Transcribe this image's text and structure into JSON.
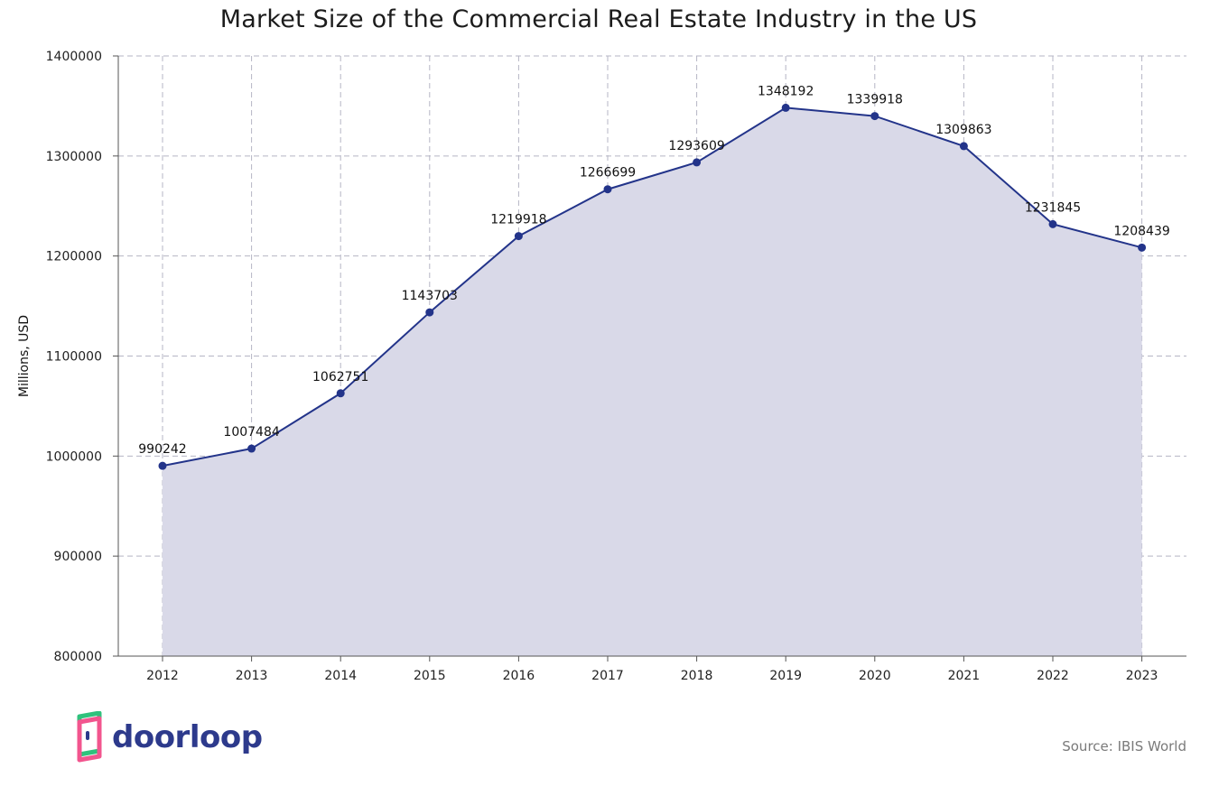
{
  "chart_data": {
    "type": "area",
    "title": "Market Size of the Commercial Real Estate Industry in the US",
    "xlabel": "",
    "ylabel": "Millions, USD",
    "categories": [
      "2012",
      "2013",
      "2014",
      "2015",
      "2016",
      "2017",
      "2018",
      "2019",
      "2020",
      "2021",
      "2022",
      "2023"
    ],
    "values": [
      990242,
      1007484,
      1062751,
      1143703,
      1219918,
      1266699,
      1293609,
      1348192,
      1339918,
      1309863,
      1231845,
      1208439
    ],
    "ylim": [
      800000,
      1400000
    ],
    "yticks": [
      800000,
      900000,
      1000000,
      1100000,
      1200000,
      1300000,
      1400000
    ],
    "grid": true,
    "data_labels": true,
    "colors": {
      "line": "#23348a",
      "marker": "#23348a",
      "fill": "#d9d9e8",
      "grid": "#b5b5c4"
    }
  },
  "branding": {
    "logo_text": "doorloop"
  },
  "source": "Source: IBIS World",
  "colors": {
    "logo_green": "#2fc27c",
    "logo_pink": "#f2558e",
    "logo_navy": "#2d3a8c"
  }
}
